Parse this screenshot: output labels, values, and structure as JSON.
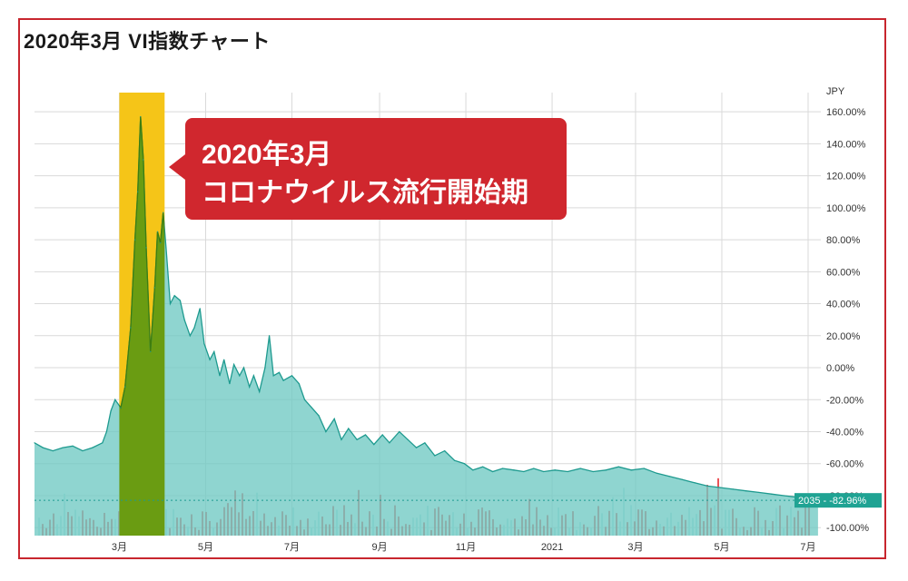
{
  "title": "2020年3月 VI指数チャート",
  "chart_data": {
    "type": "area",
    "y_unit": "JPY",
    "ylim": [
      -105,
      172
    ],
    "y_ticks": [
      160,
      140,
      120,
      100,
      80,
      60,
      40,
      20,
      0,
      -20,
      -40,
      -60,
      -80,
      -100
    ],
    "y_tick_labels": [
      "160.00%",
      "140.00%",
      "120.00%",
      "100.00%",
      "80.00%",
      "60.00%",
      "40.00%",
      "20.00%",
      "0.00%",
      "-20.00%",
      "-40.00%",
      "-60.00%",
      "-80.00%",
      "-100.00%"
    ],
    "x_range": [
      "2020-01-01",
      "2021-07-10"
    ],
    "x_ticks": [
      {
        "date": "2020-03-01",
        "label": "3月"
      },
      {
        "date": "2020-05-01",
        "label": "5月"
      },
      {
        "date": "2020-07-01",
        "label": "7月"
      },
      {
        "date": "2020-09-01",
        "label": "9月"
      },
      {
        "date": "2020-11-01",
        "label": "11月"
      },
      {
        "date": "2021-01-01",
        "label": "2021"
      },
      {
        "date": "2021-03-01",
        "label": "3月"
      },
      {
        "date": "2021-05-01",
        "label": "5月"
      },
      {
        "date": "2021-07-01",
        "label": "7月"
      }
    ],
    "grid": true,
    "highlight": {
      "from": "2020-03-01",
      "to": "2020-04-02",
      "color": "#f5c518"
    },
    "callout": {
      "lines": [
        "2020年3月",
        "コロナウイルス流行開始期"
      ],
      "color": "#d0272e"
    },
    "last_value": {
      "label": "2035 - -82.96%",
      "value": -82.96
    },
    "series": [
      {
        "color": "#6fc9c3",
        "points": [
          [
            "2020-01-01",
            -47
          ],
          [
            "2020-01-07",
            -50
          ],
          [
            "2020-01-14",
            -52
          ],
          [
            "2020-01-21",
            -50
          ],
          [
            "2020-01-28",
            -49
          ],
          [
            "2020-02-04",
            -52
          ],
          [
            "2020-02-11",
            -50
          ],
          [
            "2020-02-18",
            -47
          ],
          [
            "2020-02-21",
            -40
          ],
          [
            "2020-02-24",
            -27
          ],
          [
            "2020-02-27",
            -20
          ],
          [
            "2020-03-02",
            -25
          ],
          [
            "2020-03-05",
            -12
          ],
          [
            "2020-03-09",
            25
          ],
          [
            "2020-03-12",
            80
          ],
          [
            "2020-03-14",
            110
          ],
          [
            "2020-03-16",
            157
          ],
          [
            "2020-03-18",
            130
          ],
          [
            "2020-03-20",
            75
          ],
          [
            "2020-03-23",
            10
          ],
          [
            "2020-03-26",
            50
          ],
          [
            "2020-03-28",
            85
          ],
          [
            "2020-03-30",
            78
          ],
          [
            "2020-04-01",
            97
          ],
          [
            "2020-04-03",
            75
          ],
          [
            "2020-04-06",
            40
          ],
          [
            "2020-04-09",
            45
          ],
          [
            "2020-04-13",
            42
          ],
          [
            "2020-04-16",
            30
          ],
          [
            "2020-04-20",
            20
          ],
          [
            "2020-04-23",
            25
          ],
          [
            "2020-04-27",
            37
          ],
          [
            "2020-04-30",
            15
          ],
          [
            "2020-05-04",
            5
          ],
          [
            "2020-05-07",
            10
          ],
          [
            "2020-05-11",
            -5
          ],
          [
            "2020-05-14",
            5
          ],
          [
            "2020-05-18",
            -10
          ],
          [
            "2020-05-21",
            2
          ],
          [
            "2020-05-25",
            -5
          ],
          [
            "2020-05-28",
            0
          ],
          [
            "2020-06-01",
            -12
          ],
          [
            "2020-06-04",
            -5
          ],
          [
            "2020-06-08",
            -15
          ],
          [
            "2020-06-12",
            0
          ],
          [
            "2020-06-15",
            20
          ],
          [
            "2020-06-18",
            -5
          ],
          [
            "2020-06-22",
            -3
          ],
          [
            "2020-06-25",
            -8
          ],
          [
            "2020-07-01",
            -5
          ],
          [
            "2020-07-06",
            -10
          ],
          [
            "2020-07-10",
            -20
          ],
          [
            "2020-07-15",
            -25
          ],
          [
            "2020-07-20",
            -30
          ],
          [
            "2020-07-25",
            -40
          ],
          [
            "2020-07-31",
            -32
          ],
          [
            "2020-08-05",
            -45
          ],
          [
            "2020-08-10",
            -38
          ],
          [
            "2020-08-16",
            -45
          ],
          [
            "2020-08-22",
            -42
          ],
          [
            "2020-08-28",
            -48
          ],
          [
            "2020-09-03",
            -42
          ],
          [
            "2020-09-08",
            -47
          ],
          [
            "2020-09-15",
            -40
          ],
          [
            "2020-09-21",
            -45
          ],
          [
            "2020-09-27",
            -50
          ],
          [
            "2020-10-03",
            -47
          ],
          [
            "2020-10-10",
            -55
          ],
          [
            "2020-10-17",
            -52
          ],
          [
            "2020-10-24",
            -58
          ],
          [
            "2020-10-31",
            -60
          ],
          [
            "2020-11-06",
            -64
          ],
          [
            "2020-11-13",
            -62
          ],
          [
            "2020-11-20",
            -65
          ],
          [
            "2020-11-27",
            -63
          ],
          [
            "2020-12-05",
            -64
          ],
          [
            "2020-12-12",
            -65
          ],
          [
            "2020-12-19",
            -63
          ],
          [
            "2020-12-26",
            -65
          ],
          [
            "2021-01-03",
            -64
          ],
          [
            "2021-01-12",
            -65
          ],
          [
            "2021-01-21",
            -63
          ],
          [
            "2021-01-30",
            -65
          ],
          [
            "2021-02-08",
            -64
          ],
          [
            "2021-02-17",
            -62
          ],
          [
            "2021-02-26",
            -64
          ],
          [
            "2021-03-07",
            -63
          ],
          [
            "2021-03-16",
            -66
          ],
          [
            "2021-03-25",
            -68
          ],
          [
            "2021-04-03",
            -70
          ],
          [
            "2021-04-12",
            -72
          ],
          [
            "2021-04-21",
            -74
          ],
          [
            "2021-04-30",
            -75
          ],
          [
            "2021-05-09",
            -76
          ],
          [
            "2021-05-18",
            -77
          ],
          [
            "2021-05-27",
            -78
          ],
          [
            "2021-06-05",
            -79
          ],
          [
            "2021-06-14",
            -80
          ],
          [
            "2021-06-23",
            -81
          ],
          [
            "2021-07-02",
            -82.5
          ],
          [
            "2021-07-08",
            -82.96
          ]
        ]
      }
    ]
  }
}
